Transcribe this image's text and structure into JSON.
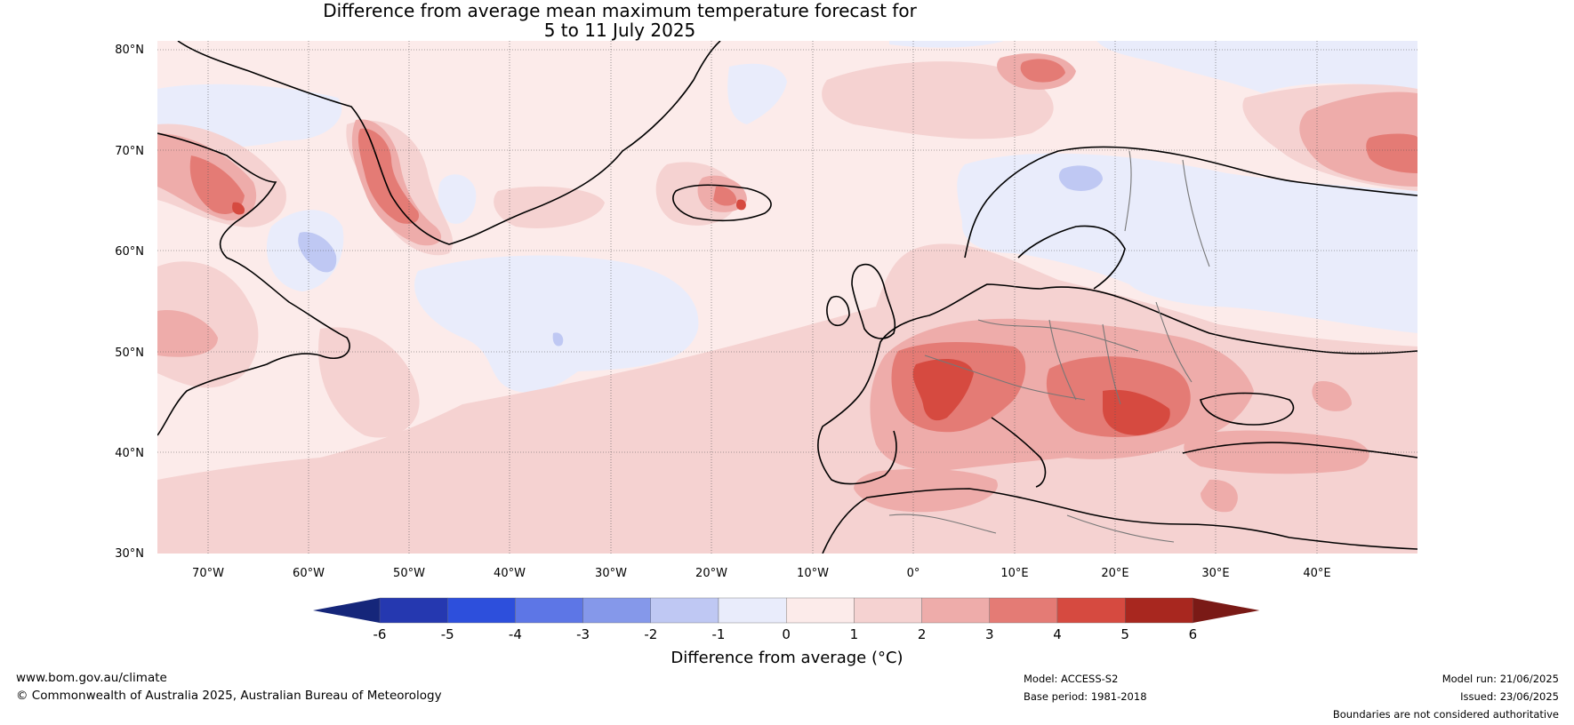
{
  "title_line1": "Difference from average mean maximum temperature forecast for",
  "title_line2": "5 to 11 July 2025",
  "latitude_labels": [
    "80°N",
    "70°N",
    "60°N",
    "50°N",
    "40°N",
    "30°N"
  ],
  "longitude_labels": [
    "70°W",
    "60°W",
    "50°W",
    "40°W",
    "30°W",
    "20°W",
    "10°W",
    "0°",
    "10°E",
    "20°E",
    "30°E",
    "40°E"
  ],
  "colorbar": {
    "label": "Difference from average (°C)",
    "ticks": [
      "-6",
      "-5",
      "-4",
      "-3",
      "-2",
      "-1",
      "0",
      "1",
      "2",
      "3",
      "4",
      "5",
      "6"
    ],
    "colors": [
      "#15267a",
      "#2538b0",
      "#2d4fdc",
      "#5d76e6",
      "#8598ea",
      "#bfc8f3",
      "#e9ecfb",
      "#fcebea",
      "#f5d2d1",
      "#eeacaa",
      "#e47b75",
      "#d64a40",
      "#a8271f",
      "#7a1a16"
    ]
  },
  "footer": {
    "website": "www.bom.gov.au/climate",
    "copyright": "© Commonwealth of Australia 2025, Australian Bureau of Meteorology",
    "model": "Model: ACCESS-S2",
    "base_period": "Base period: 1981-2018",
    "model_run": "Model run: 21/06/2025",
    "issued": "Issued: 23/06/2025",
    "disclaimer": "Boundaries are not considered authoritative"
  }
}
